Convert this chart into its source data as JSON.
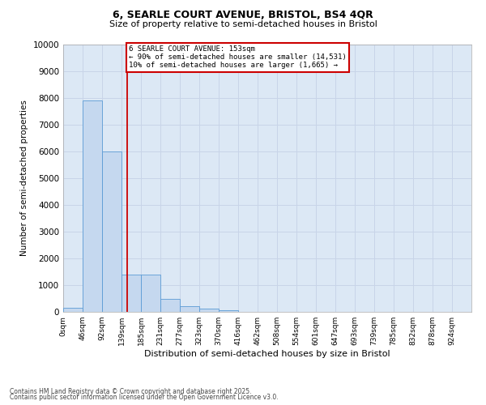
{
  "title1": "6, SEARLE COURT AVENUE, BRISTOL, BS4 4QR",
  "title2": "Size of property relative to semi-detached houses in Bristol",
  "xlabel": "Distribution of semi-detached houses by size in Bristol",
  "ylabel": "Number of semi-detached properties",
  "bin_labels": [
    "0sqm",
    "46sqm",
    "92sqm",
    "139sqm",
    "185sqm",
    "231sqm",
    "277sqm",
    "323sqm",
    "370sqm",
    "416sqm",
    "462sqm",
    "508sqm",
    "554sqm",
    "601sqm",
    "647sqm",
    "693sqm",
    "739sqm",
    "785sqm",
    "832sqm",
    "878sqm",
    "924sqm"
  ],
  "bin_edges": [
    0,
    46,
    92,
    139,
    185,
    231,
    277,
    323,
    370,
    416,
    462,
    508,
    554,
    601,
    647,
    693,
    739,
    785,
    832,
    878,
    924
  ],
  "bin_width": 46,
  "bar_heights": [
    150,
    7900,
    6000,
    1400,
    1400,
    500,
    220,
    130,
    60,
    0,
    0,
    0,
    0,
    0,
    0,
    0,
    0,
    0,
    0,
    0
  ],
  "bar_color": "#c5d8ef",
  "bar_edge_color": "#5b9bd5",
  "vline_x": 153,
  "vline_color": "#cc0000",
  "annotation_text": "6 SEARLE COURT AVENUE: 153sqm\n← 90% of semi-detached houses are smaller (14,531)\n10% of semi-detached houses are larger (1,665) →",
  "annotation_box_facecolor": "#ffffff",
  "annotation_box_edgecolor": "#cc0000",
  "ylim": [
    0,
    10000
  ],
  "yticks": [
    0,
    1000,
    2000,
    3000,
    4000,
    5000,
    6000,
    7000,
    8000,
    9000,
    10000
  ],
  "grid_color": "#c8d4e8",
  "background_color": "#dce8f5",
  "footer1": "Contains HM Land Registry data © Crown copyright and database right 2025.",
  "footer2": "Contains public sector information licensed under the Open Government Licence v3.0."
}
